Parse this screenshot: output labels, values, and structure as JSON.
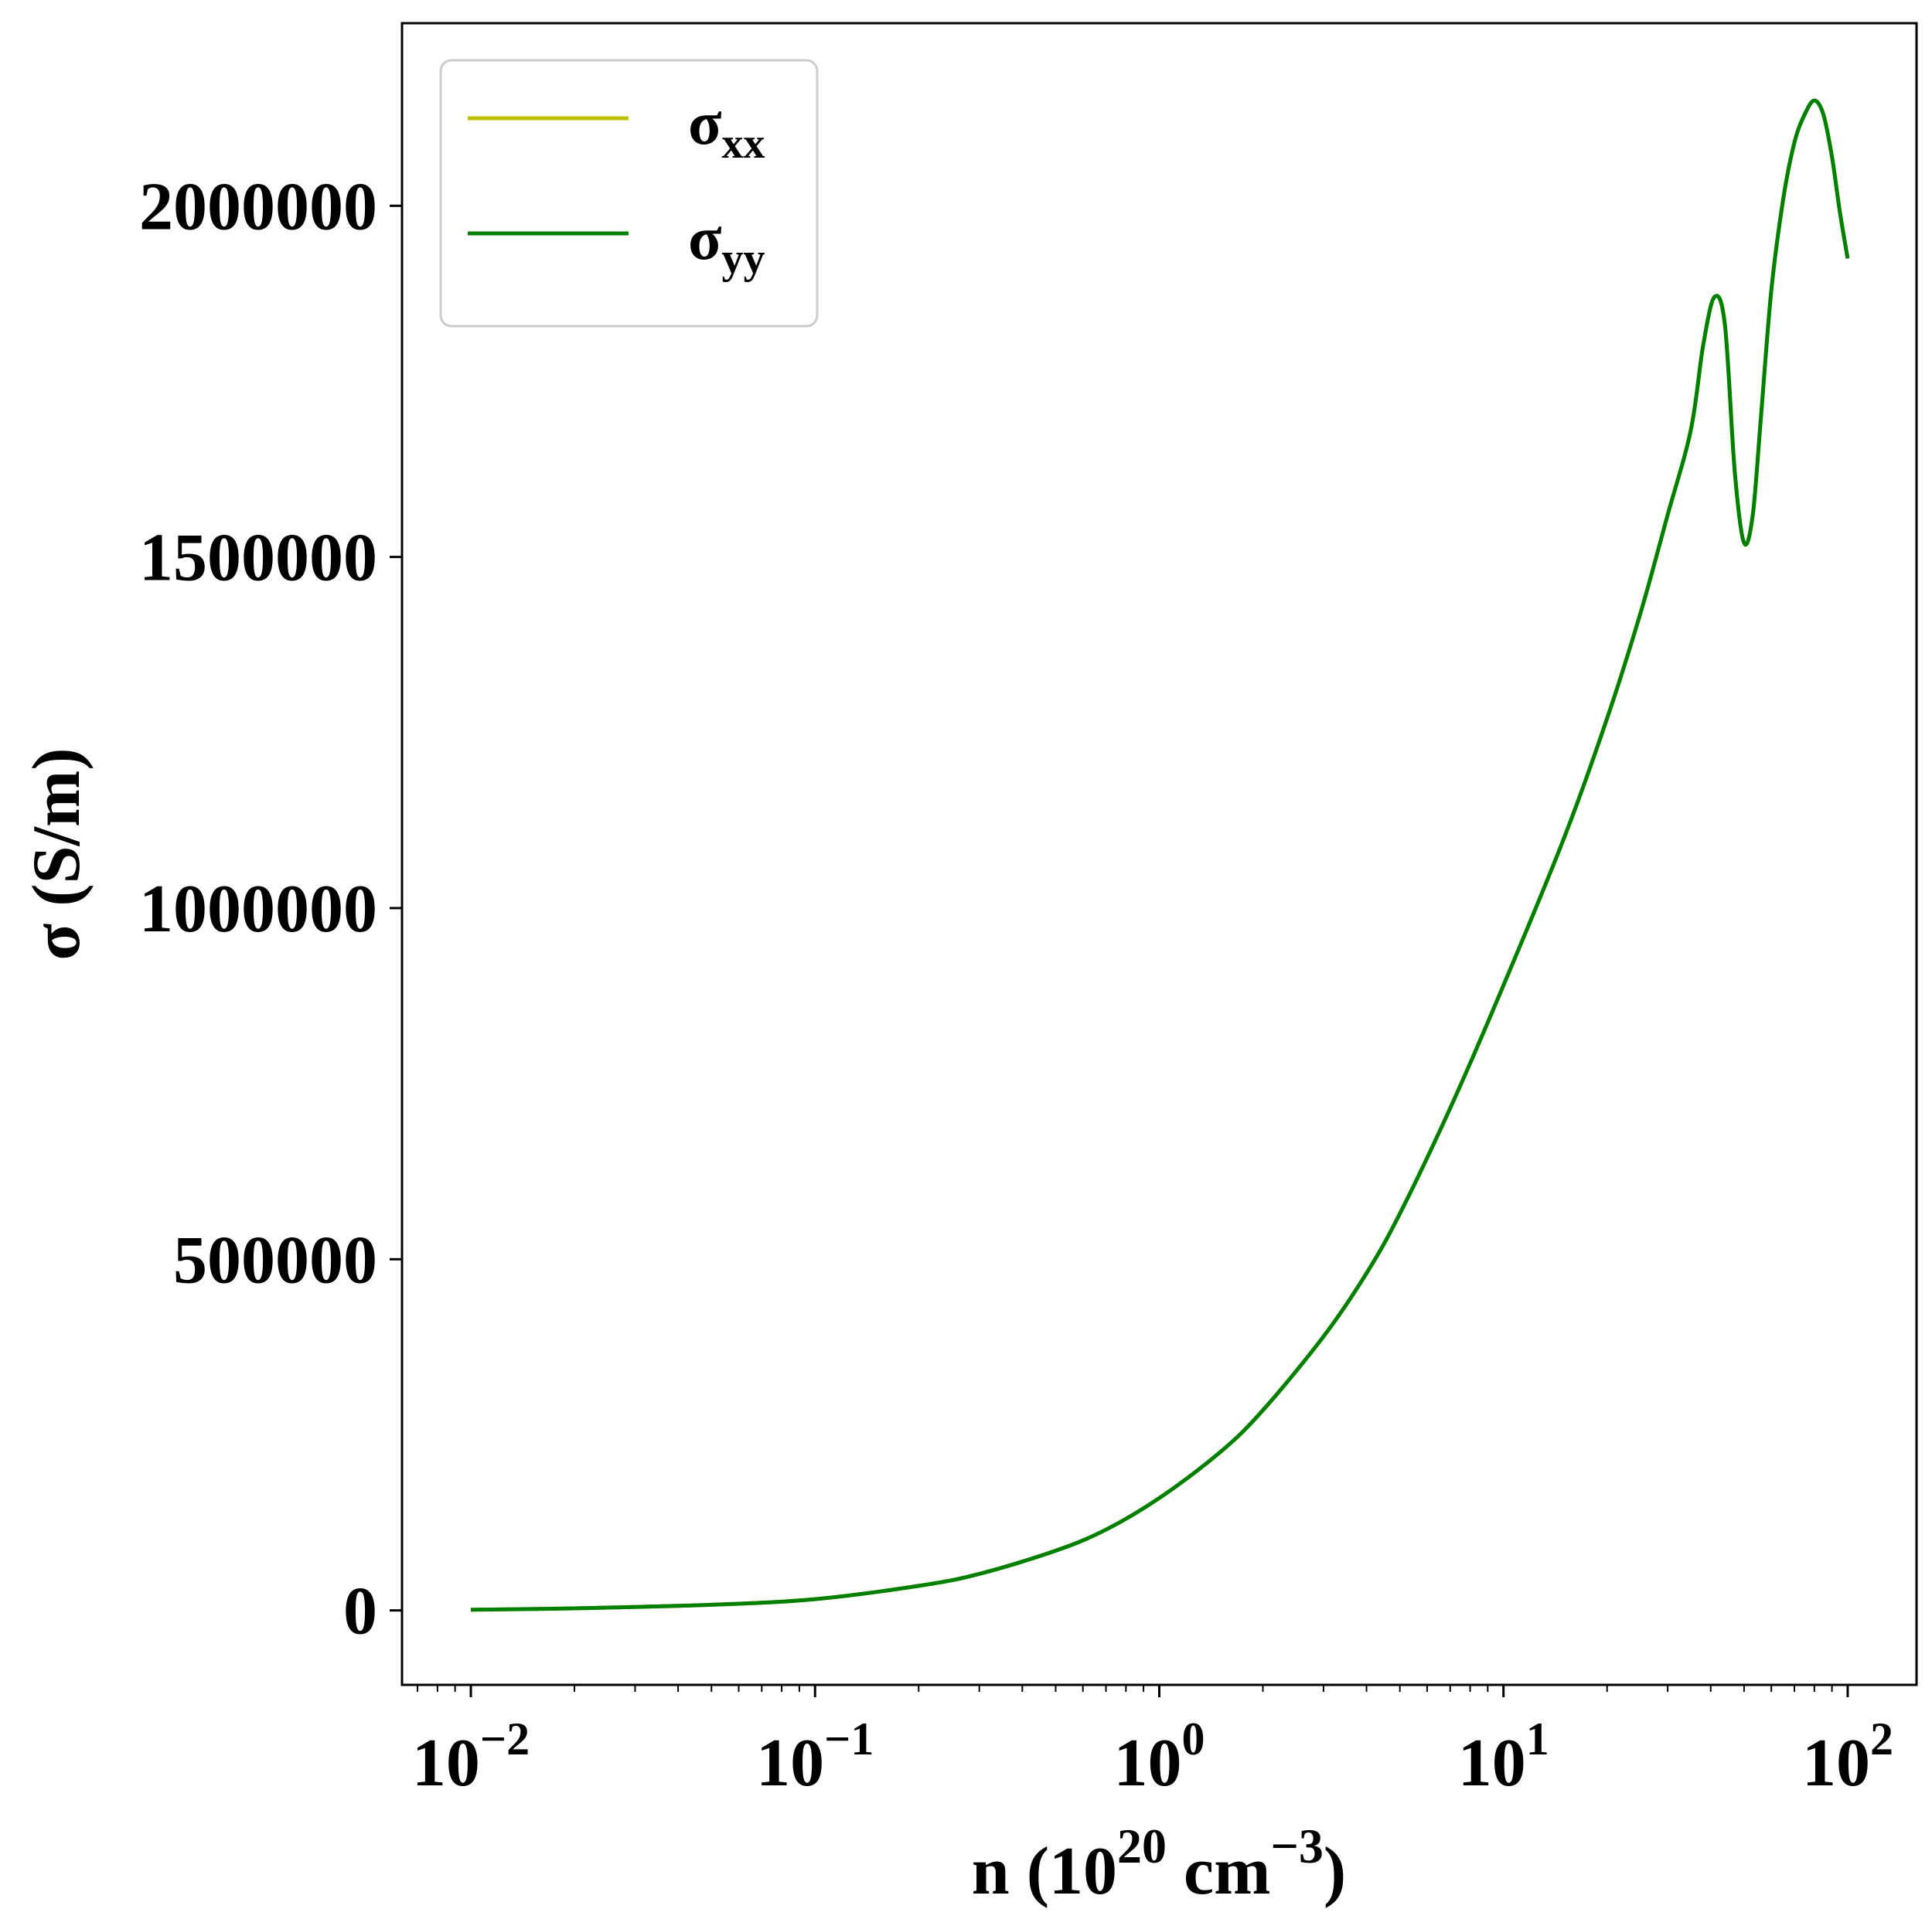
{
  "chart_data": {
    "type": "line",
    "xscale": "log",
    "xlim": [
      0.00631,
      158.5
    ],
    "ylim": [
      -106000,
      2260000
    ],
    "xlabel": {
      "base": "n (10",
      "exp1": "20",
      "mid": " cm",
      "exp2": "−3",
      "end": ")"
    },
    "ylabel": "σ (S/m)",
    "x_ticks": [
      {
        "value": 0.01,
        "base": "10",
        "exp": "−2"
      },
      {
        "value": 0.1,
        "base": "10",
        "exp": "−1"
      },
      {
        "value": 1,
        "base": "10",
        "exp": "0"
      },
      {
        "value": 10,
        "base": "10",
        "exp": "1"
      },
      {
        "value": 100,
        "base": "10",
        "exp": "2"
      }
    ],
    "y_ticks": [
      {
        "value": 0,
        "label": "0"
      },
      {
        "value": 500000,
        "label": "500000"
      },
      {
        "value": 1000000,
        "label": "1000000"
      },
      {
        "value": 1500000,
        "label": "1500000"
      },
      {
        "value": 2000000,
        "label": "2000000"
      }
    ],
    "grid": false,
    "legend_position": "top-left",
    "x": [
      0.01,
      0.02,
      0.05,
      0.1,
      0.2,
      0.3,
      0.5,
      0.7,
      1.0,
      1.5,
      2.0,
      3.0,
      4.0,
      5.0,
      7.0,
      10.0,
      15.0,
      20.0,
      25.0,
      30.0,
      35.0,
      38.0,
      41.0,
      44.0,
      47.0,
      50.0,
      53.0,
      56.0,
      60.0,
      65.0,
      70.0,
      75.0,
      80.0,
      85.0,
      90.0,
      95.0,
      100.0
    ],
    "series": [
      {
        "name": "σxx",
        "name_main": "σ",
        "name_sub": "xx",
        "color": "#bfbf00",
        "values": [
          1000,
          3000,
          8000,
          16000,
          35000,
          52000,
          85000,
          115000,
          160000,
          225000,
          285000,
          390000,
          480000,
          565000,
          715000,
          890000,
          1100000,
          1270000,
          1420000,
          1560000,
          1680000,
          1800000,
          1870000,
          1830000,
          1620000,
          1520000,
          1560000,
          1700000,
          1880000,
          2010000,
          2090000,
          2130000,
          2150000,
          2130000,
          2070000,
          1990000,
          1925000
        ]
      },
      {
        "name": "σyy",
        "name_main": "σ",
        "name_sub": "yy",
        "color": "#008000",
        "values": [
          1000,
          3000,
          8000,
          16000,
          35000,
          52000,
          85000,
          115000,
          160000,
          225000,
          285000,
          390000,
          480000,
          565000,
          715000,
          890000,
          1100000,
          1270000,
          1420000,
          1560000,
          1680000,
          1800000,
          1870000,
          1830000,
          1620000,
          1520000,
          1560000,
          1700000,
          1880000,
          2010000,
          2090000,
          2130000,
          2150000,
          2130000,
          2070000,
          1990000,
          1925000
        ]
      }
    ]
  }
}
